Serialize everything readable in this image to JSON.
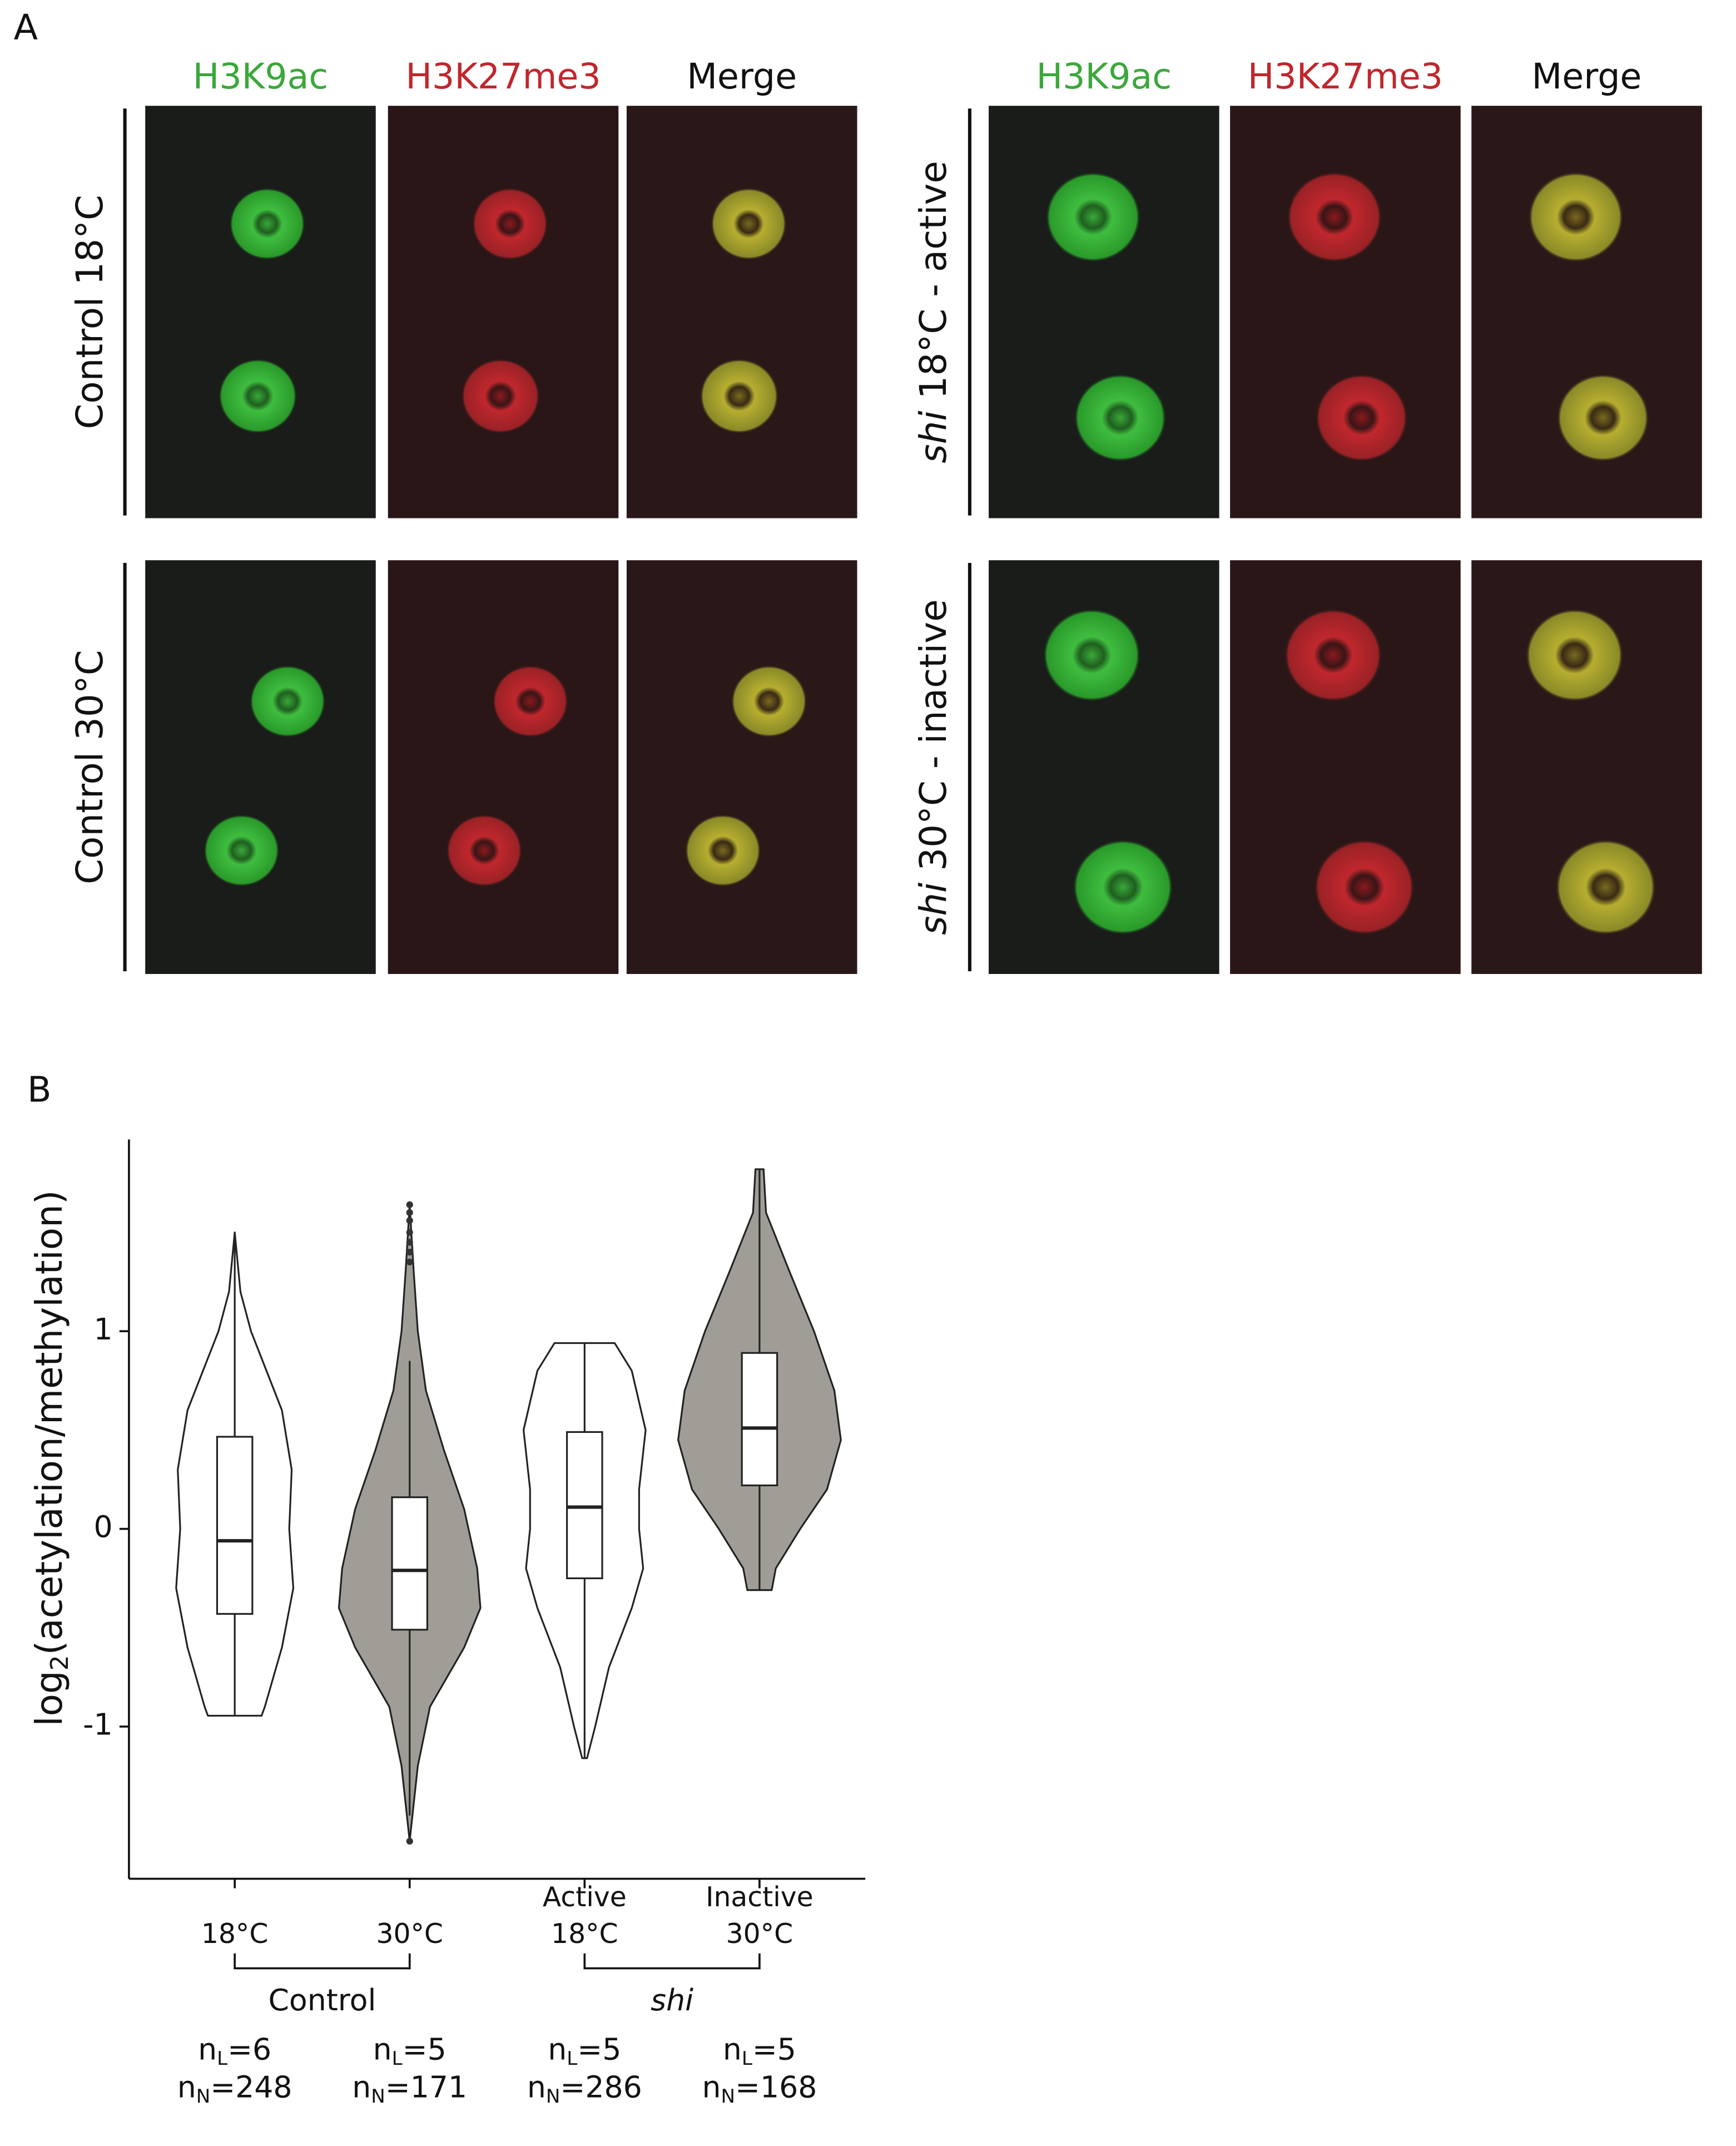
{
  "panel_a": {
    "label": "A",
    "column_headers": [
      [
        "H3K9ac",
        "H3K27me3",
        "Merge"
      ],
      [
        "H3K9ac",
        "H3K27me3",
        "Merge"
      ]
    ],
    "left_rows": [
      "Control 18°C",
      "Control 30°C"
    ],
    "right_rows": [
      {
        "italic": "shi",
        "rest": " 18°C - active"
      },
      {
        "italic": "shi",
        "rest": " 30°C - inactive"
      }
    ]
  },
  "chart_data": {
    "type": "violin",
    "panel_label": "B",
    "y_label": {
      "main": "log",
      "sub": "2",
      "rest": "(acetylation/methylation)"
    },
    "categories": [
      "18°C",
      "30°C",
      "Active 18°C",
      "Inactive 30°C"
    ],
    "brackets": [
      {
        "label": "Control",
        "italic": false
      },
      {
        "label": "shi",
        "italic": true
      }
    ],
    "n_symbol": "n",
    "n_L_sub": "L",
    "n_N_sub": "N",
    "equals": "=",
    "ylim": [
      -1.77,
      1.97
    ],
    "yticks": [
      -1,
      0,
      1
    ],
    "series": [
      {
        "color": "#ffffff",
        "whisker_low": -0.945,
        "q1": -0.43,
        "median": -0.06,
        "q3": 0.466,
        "whisker_high": 1.5,
        "outliers": [],
        "violin": {
          "y": [
            1.5,
            1.2,
            1.0,
            0.6,
            0.3,
            0,
            -0.3,
            -0.6,
            -0.9,
            -0.945
          ],
          "density": [
            0,
            0.07,
            0.2,
            0.58,
            0.7,
            0.67,
            0.72,
            0.58,
            0.37,
            0.33
          ]
        },
        "n_L": 6,
        "n_N": 248
      },
      {
        "color": "#a09d97",
        "whisker_low": -1.45,
        "q1": -0.51,
        "median": -0.21,
        "q3": 0.16,
        "whisker_high": 0.85,
        "outliers": [
          1.64,
          1.6,
          1.56,
          1.5,
          1.45,
          1.4,
          1.35,
          -1.58
        ],
        "violin": {
          "y": [
            1.64,
            1.3,
            1.0,
            0.7,
            0.4,
            0.1,
            -0.2,
            -0.4,
            -0.6,
            -0.9,
            -1.2,
            -1.58
          ],
          "density": [
            0,
            0.05,
            0.1,
            0.2,
            0.42,
            0.67,
            0.83,
            0.87,
            0.67,
            0.25,
            0.1,
            0
          ]
        },
        "n_L": 5,
        "n_N": 171
      },
      {
        "color": "#ffffff",
        "whisker_low": -1.16,
        "q1": -0.25,
        "median": 0.11,
        "q3": 0.49,
        "whisker_high": 0.94,
        "outliers": [],
        "violin": {
          "y": [
            0.94,
            0.8,
            0.5,
            0.2,
            0,
            -0.2,
            -0.4,
            -0.7,
            -1.0,
            -1.16
          ],
          "density": [
            0.37,
            0.58,
            0.75,
            0.67,
            0.67,
            0.72,
            0.58,
            0.3,
            0.13,
            0.03
          ]
        },
        "n_L": 5,
        "n_N": 286
      },
      {
        "color": "#a09d97",
        "whisker_low": -0.31,
        "q1": 0.22,
        "median": 0.51,
        "q3": 0.89,
        "whisker_high": 1.82,
        "outliers": [],
        "violin": {
          "y": [
            1.82,
            1.6,
            1.3,
            1.0,
            0.7,
            0.45,
            0.2,
            0,
            -0.2,
            -0.31
          ],
          "density": [
            0.05,
            0.08,
            0.37,
            0.67,
            0.92,
            1.0,
            0.83,
            0.5,
            0.2,
            0.15
          ]
        },
        "n_L": 5,
        "n_N": 168
      }
    ]
  }
}
